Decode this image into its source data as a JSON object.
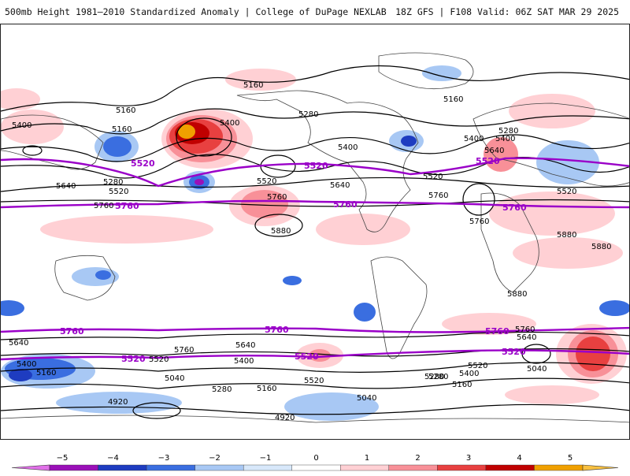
{
  "header": {
    "title": "500mb Height 1981–2010 Standardized Anomaly | College of DuPage NEXLAB",
    "run_info": "18Z GFS | F108 Valid: 06Z SAT MAR 29 2025"
  },
  "map": {
    "contour_labels": [
      "5160",
      "5400",
      "5160",
      "5400",
      "5280",
      "5520",
      "5640",
      "5760",
      "5400",
      "5160",
      "5280",
      "5400",
      "5520",
      "5640",
      "5760",
      "5880",
      "5160",
      "5280",
      "5400",
      "5520",
      "5640",
      "5520",
      "5760",
      "5880",
      "5880",
      "5880",
      "5760",
      "5640",
      "5400",
      "5520",
      "5280",
      "5160",
      "5040",
      "4920",
      "4920",
      "5040",
      "5160",
      "5280",
      "5400",
      "5520",
      "5640",
      "5760",
      "5040",
      "5160",
      "5280",
      "5400",
      "5520",
      "5640",
      "5760"
    ],
    "thick_labels": [
      "5520",
      "5520",
      "5520",
      "5760",
      "5760",
      "5760",
      "5760",
      "5760",
      "5760",
      "5520",
      "5520",
      "5520"
    ],
    "colors": {
      "contour": "#000000",
      "highlight_contour": "#9a00c8",
      "land_outline": "#444444"
    }
  },
  "colorbar": {
    "ticks": [
      "−5",
      "−4",
      "−3",
      "−2",
      "−1",
      "0",
      "1",
      "2",
      "3",
      "4",
      "5"
    ],
    "colors": [
      "#e070e8",
      "#9a10b8",
      "#1e3cc0",
      "#3a6ee0",
      "#a8c8f4",
      "#d8e8fa",
      "#ffffff",
      "#ffd0d4",
      "#f89098",
      "#e84040",
      "#c00000",
      "#f0a000",
      "#f8c040"
    ]
  }
}
